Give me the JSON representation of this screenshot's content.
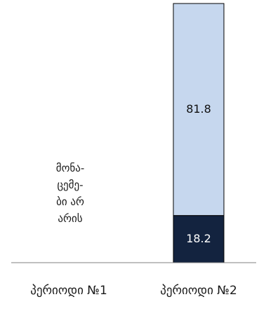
{
  "chart_data": {
    "type": "bar",
    "stacked": true,
    "categories": [
      "პერიოდი №1",
      "პერიოდი №2"
    ],
    "series": [
      {
        "values": [
          null,
          18.2
        ],
        "color": "#13233f",
        "label_color": "#ffffff"
      },
      {
        "values": [
          null,
          81.8
        ],
        "color": "#c6d7ee",
        "label_color": "#111111"
      }
    ],
    "ylim": [
      0,
      100
    ],
    "axis_color": "#808080",
    "annotation": {
      "category": "პერიოდი №1",
      "lines": [
        "მონა-",
        "ცემე-",
        "ბი არ",
        "არის"
      ]
    }
  }
}
